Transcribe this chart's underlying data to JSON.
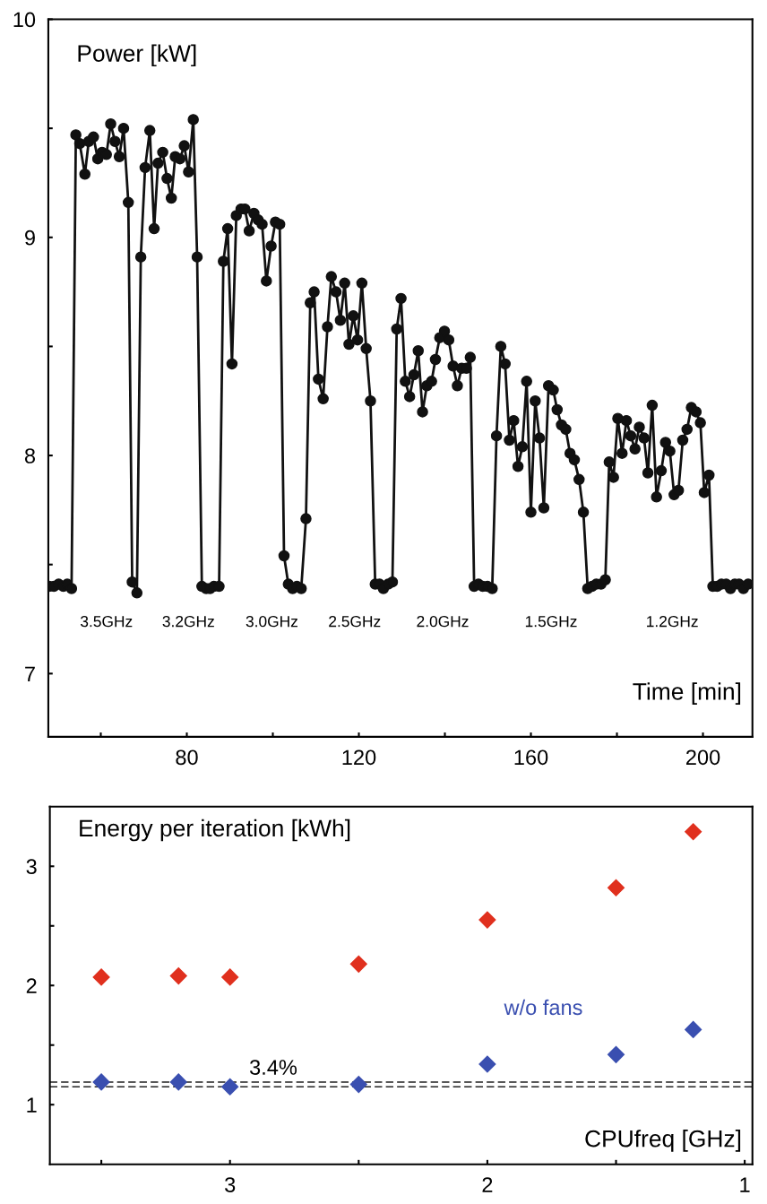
{
  "chart_data": [
    {
      "type": "line",
      "ylabel": "Power [kW]",
      "xlabel": "Time [min]",
      "marker": "circle",
      "line_style": "solid",
      "legend": false,
      "grid": false,
      "xlim": [
        47.8,
        211.5
      ],
      "ylim": [
        6.71,
        10
      ],
      "xticks": [
        {
          "value": 60,
          "label": null
        },
        80,
        {
          "value": 100,
          "label": null
        },
        120,
        {
          "value": 140,
          "label": null
        },
        160,
        {
          "value": 180,
          "label": null
        },
        200
      ],
      "yticks": [
        7,
        {
          "value": 7.5,
          "label": null
        },
        8,
        {
          "value": 8.5,
          "label": null
        },
        9,
        {
          "value": 9.5,
          "label": null
        },
        10
      ],
      "annotations": [
        "3.5GHz",
        "3.2GHz",
        "3.0GHz",
        "2.5GHz",
        "2.0GHz",
        "1.5GHz",
        "1.2GHz"
      ],
      "series": [
        {
          "color": "#111111",
          "x": [
            48.0,
            49.1,
            50.2,
            51.3,
            52.2,
            53.2,
            54.2,
            55.1,
            56.3,
            57.2,
            58.3,
            59.3,
            60.3,
            61.3,
            62.3,
            63.3,
            64.3,
            65.3,
            66.4,
            67.3,
            68.4,
            69.3,
            70.3,
            71.4,
            72.4,
            73.3,
            74.4,
            75.4,
            76.4,
            77.3,
            78.4,
            79.4,
            80.4,
            81.5,
            82.4,
            83.5,
            84.5,
            85.4,
            86.3,
            87.5,
            88.5,
            89.5,
            90.5,
            91.5,
            92.6,
            93.5,
            94.5,
            95.6,
            96.6,
            97.5,
            98.5,
            99.6,
            100.6,
            101.6,
            102.6,
            103.6,
            104.6,
            105.6,
            106.6,
            107.7,
            108.7,
            109.6,
            110.6,
            111.7,
            112.7,
            113.6,
            114.7,
            115.7,
            116.7,
            117.7,
            118.7,
            119.7,
            120.7,
            121.7,
            122.7,
            123.8,
            124.8,
            125.7,
            126.8,
            127.8,
            128.8,
            129.8,
            130.8,
            131.8,
            132.8,
            133.8,
            134.8,
            135.8,
            136.9,
            137.8,
            138.8,
            139.9,
            140.9,
            141.9,
            142.9,
            143.9,
            145.0,
            145.9,
            146.8,
            147.8,
            148.8,
            149.9,
            151.0,
            152.0,
            153.0,
            154.0,
            155.0,
            156.0,
            157.0,
            158.0,
            159.0,
            160.0,
            161.0,
            162.0,
            163.0,
            164.1,
            165.2,
            166.1,
            167.1,
            168.1,
            169.1,
            170.1,
            171.2,
            172.2,
            173.2,
            174.2,
            175.2,
            176.3,
            177.3,
            178.2,
            179.2,
            180.2,
            181.2,
            182.2,
            183.2,
            184.2,
            185.2,
            186.3,
            187.2,
            188.2,
            189.2,
            190.3,
            191.3,
            192.3,
            193.3,
            194.3,
            195.3,
            196.3,
            197.3,
            198.4,
            199.4,
            200.3,
            201.4,
            202.3,
            203.3,
            204.3,
            205.4,
            206.4,
            207.4,
            208.4,
            209.4,
            210.5
          ],
          "values": [
            7.4,
            7.4,
            7.41,
            7.4,
            7.41,
            7.39,
            9.47,
            9.43,
            9.29,
            9.44,
            9.46,
            9.36,
            9.39,
            9.38,
            9.52,
            9.44,
            9.37,
            9.5,
            9.16,
            7.42,
            7.37,
            8.91,
            9.32,
            9.49,
            9.04,
            9.34,
            9.39,
            9.27,
            9.18,
            9.37,
            9.36,
            9.42,
            9.3,
            9.54,
            8.91,
            7.4,
            7.39,
            7.39,
            7.4,
            7.4,
            8.89,
            9.04,
            8.42,
            9.1,
            9.13,
            9.13,
            9.03,
            9.11,
            9.08,
            9.06,
            8.8,
            8.96,
            9.07,
            9.06,
            7.54,
            7.41,
            7.39,
            7.4,
            7.39,
            7.71,
            8.7,
            8.75,
            8.35,
            8.26,
            8.59,
            8.82,
            8.75,
            8.62,
            8.79,
            8.51,
            8.64,
            8.53,
            8.79,
            8.49,
            8.25,
            7.41,
            7.41,
            7.39,
            7.41,
            7.42,
            8.58,
            8.72,
            8.34,
            8.27,
            8.37,
            8.48,
            8.2,
            8.32,
            8.34,
            8.44,
            8.54,
            8.57,
            8.53,
            8.41,
            8.32,
            8.4,
            8.4,
            8.45,
            7.4,
            7.41,
            7.4,
            7.4,
            7.39,
            8.09,
            8.5,
            8.42,
            8.07,
            8.16,
            7.95,
            8.04,
            8.34,
            7.74,
            8.25,
            8.08,
            7.76,
            8.32,
            8.3,
            8.21,
            8.14,
            8.12,
            8.01,
            7.98,
            7.89,
            7.74,
            7.39,
            7.4,
            7.41,
            7.41,
            7.43,
            7.97,
            7.9,
            8.17,
            8.01,
            8.16,
            8.09,
            8.03,
            8.13,
            8.08,
            7.92,
            8.23,
            7.81,
            7.93,
            8.06,
            8.02,
            7.82,
            7.84,
            8.07,
            8.12,
            8.22,
            8.2,
            8.15,
            7.83,
            7.91,
            7.4,
            7.4,
            7.41,
            7.41,
            7.39,
            7.41,
            7.41,
            7.39,
            7.41
          ]
        }
      ]
    },
    {
      "type": "scatter",
      "ylabel": "Energy per iteration [kWh]",
      "xlabel": "CPUfreq [GHz]",
      "marker": "diamond",
      "legend": false,
      "grid": false,
      "x": [
        3.5,
        3.2,
        3.0,
        2.5,
        2.0,
        1.5,
        1.2
      ],
      "xlim": [
        3.7,
        0.97
      ],
      "ylim": [
        0.5,
        3.5
      ],
      "xticks": [
        {
          "value": 3.5,
          "label": null
        },
        3,
        {
          "value": 2.5,
          "label": null
        },
        2,
        {
          "value": 1.5,
          "label": null
        },
        1
      ],
      "yticks": [
        1,
        {
          "value": 1.5,
          "label": null
        },
        2,
        {
          "value": 2.5,
          "label": null
        },
        3
      ],
      "ref_lines": [
        {
          "axis": "y",
          "value": 1.19,
          "color": "#222222",
          "line_style": "dashed"
        },
        {
          "axis": "y",
          "value": 1.15,
          "color": "#222222",
          "line_style": "dashed"
        }
      ],
      "annotations": [
        "3.4%"
      ],
      "series": [
        {
          "color": "#e0301e",
          "values": [
            2.07,
            2.08,
            2.07,
            2.18,
            2.55,
            2.82,
            3.29
          ]
        },
        {
          "name": "w/o fans",
          "color": "#3a4fb0",
          "values": [
            1.19,
            1.19,
            1.15,
            1.17,
            1.34,
            1.42,
            1.63
          ]
        }
      ]
    }
  ]
}
